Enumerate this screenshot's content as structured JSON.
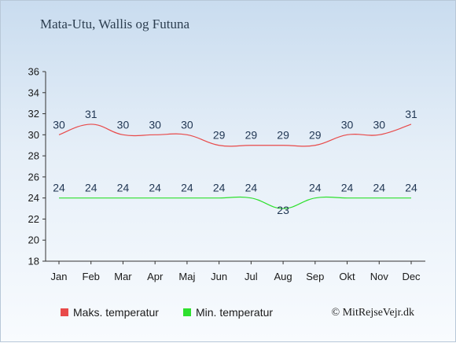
{
  "chart_data": {
    "type": "line",
    "title": "Mata-Utu, Wallis og Futuna",
    "categories": [
      "Jan",
      "Feb",
      "Mar",
      "Apr",
      "Maj",
      "Jun",
      "Jul",
      "Aug",
      "Sep",
      "Okt",
      "Nov",
      "Dec"
    ],
    "series": [
      {
        "name": "Maks. temperatur",
        "color": "#e84a4a",
        "values": [
          30,
          31,
          30,
          30,
          30,
          29,
          29,
          29,
          29,
          30,
          30,
          31
        ]
      },
      {
        "name": "Min. temperatur",
        "color": "#2ee02e",
        "values": [
          24,
          24,
          24,
          24,
          24,
          24,
          24,
          23,
          24,
          24,
          24,
          24
        ]
      }
    ],
    "ylim": [
      18,
      36
    ],
    "yticks": [
      18,
      20,
      22,
      24,
      26,
      28,
      30,
      32,
      34,
      36
    ],
    "grid": false,
    "legend_position": "bottom-left"
  },
  "credit": "© MitRejseVejr.dk"
}
